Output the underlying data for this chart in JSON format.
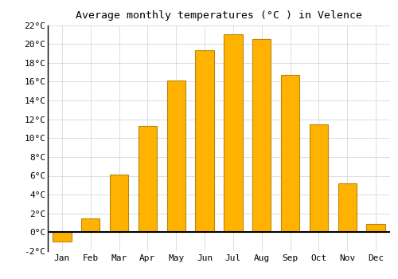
{
  "title": "Average monthly temperatures (°C ) in Velence",
  "months": [
    "Jan",
    "Feb",
    "Mar",
    "Apr",
    "May",
    "Jun",
    "Jul",
    "Aug",
    "Sep",
    "Oct",
    "Nov",
    "Dec"
  ],
  "values": [
    -1.0,
    1.5,
    6.1,
    11.3,
    16.1,
    19.3,
    21.0,
    20.5,
    16.7,
    11.5,
    5.2,
    0.9
  ],
  "bar_color": "#FFB300",
  "bar_edge_color": "#B8860B",
  "ylim": [
    -2,
    22
  ],
  "yticks": [
    -2,
    0,
    2,
    4,
    6,
    8,
    10,
    12,
    14,
    16,
    18,
    20,
    22
  ],
  "background_color": "#ffffff",
  "grid_color": "#d8d8d8",
  "title_fontsize": 9.5,
  "tick_fontsize": 8,
  "font_family": "monospace"
}
